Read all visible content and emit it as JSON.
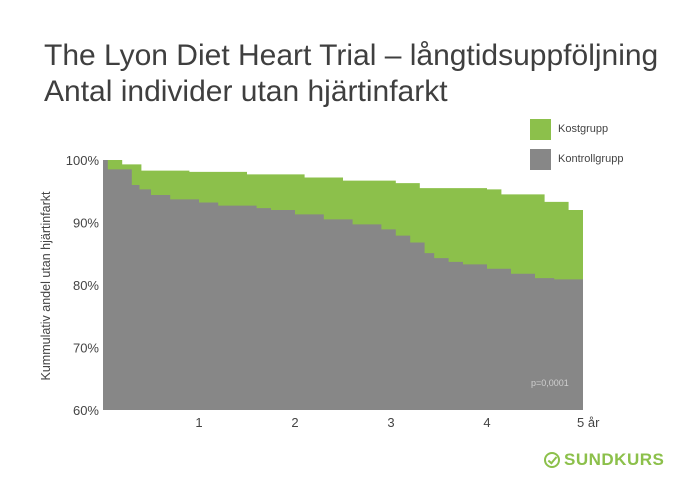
{
  "title_line1": "The Lyon Diet Heart Trial – långtidsuppföljning",
  "title_line2": "Antal individer utan hjärtinfarkt",
  "brand": "SUNDKURS",
  "colors": {
    "diet": "#8cc04b",
    "control": "#878787"
  },
  "chart_data": {
    "type": "area",
    "ylabel": "Kummulativ andel utan hjärtinfarkt",
    "ylim": [
      60,
      100
    ],
    "xlim": [
      0,
      5
    ],
    "yticks": [
      "60%",
      "70%",
      "80%",
      "90%",
      "100%"
    ],
    "ytick_values": [
      60,
      70,
      80,
      90,
      100
    ],
    "xticks": [
      "1",
      "2",
      "3",
      "4",
      "5 år"
    ],
    "xtick_values": [
      1,
      2,
      3,
      4,
      5
    ],
    "annotation": "p=0,0001",
    "legend": [
      "Kostgrupp",
      "Kontrollgrupp"
    ],
    "legend_position": "top-right",
    "series": [
      {
        "name": "Kostgrupp",
        "x": [
          0,
          0.2,
          0.4,
          0.9,
          1.5,
          2.1,
          2.5,
          3.05,
          3.3,
          4.0,
          4.15,
          4.6,
          4.85,
          5.0
        ],
        "y": [
          100,
          99.3,
          98.3,
          98.1,
          97.7,
          97.2,
          96.7,
          96.3,
          95.5,
          95.3,
          94.5,
          93.3,
          92.0,
          92.0
        ]
      },
      {
        "name": "Kontrollgrupp",
        "x": [
          0,
          0.05,
          0.25,
          0.3,
          0.38,
          0.5,
          0.7,
          1.0,
          1.2,
          1.6,
          1.75,
          2.0,
          2.3,
          2.6,
          2.9,
          3.05,
          3.2,
          3.35,
          3.45,
          3.6,
          3.75,
          4.0,
          4.25,
          4.5,
          4.7,
          5.0
        ],
        "y": [
          100,
          98.5,
          98.5,
          96.0,
          95.3,
          94.4,
          93.7,
          93.2,
          92.7,
          92.3,
          92.0,
          91.3,
          90.5,
          89.7,
          88.9,
          87.9,
          86.8,
          85.1,
          84.3,
          83.7,
          83.3,
          82.6,
          81.8,
          81.1,
          80.9,
          80.9
        ]
      }
    ]
  }
}
